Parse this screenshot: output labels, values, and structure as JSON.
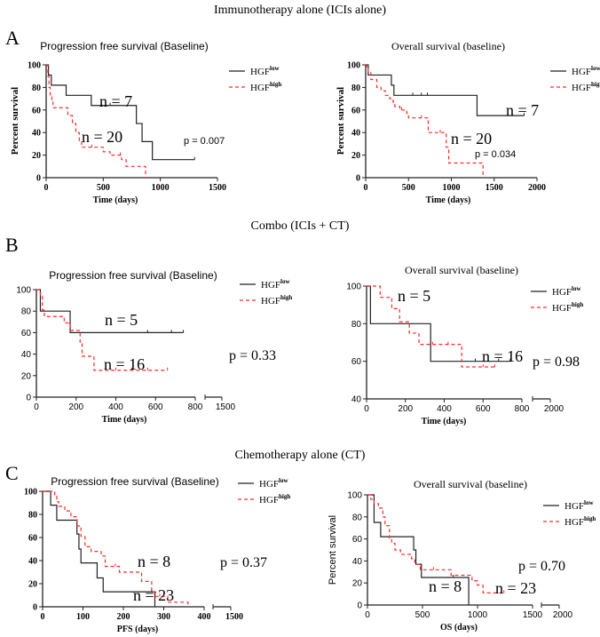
{
  "sections": [
    {
      "letter": "A",
      "title": "Immunotherapy alone (ICIs alone)"
    },
    {
      "letter": "B",
      "title": "Combo (ICIs + CT)"
    },
    {
      "letter": "C",
      "title": "Chemotherapy alone (CT)"
    }
  ],
  "legend": {
    "prefix": "HGF",
    "low_sup": "low",
    "high_sup": "high"
  },
  "colors": {
    "low": "#222222",
    "high": "#ff2a2a"
  },
  "chart_data": [
    {
      "type": "line",
      "subtype": "kaplan-meier",
      "title": "Progression free survival (Baseline)",
      "xlabel": "Time (days)",
      "ylabel": "Percent survival",
      "xlim": [
        0,
        1500
      ],
      "ylim": [
        0,
        100
      ],
      "xticks": [
        0,
        500,
        1000,
        1500
      ],
      "yticks": [
        0,
        20,
        40,
        60,
        80,
        100
      ],
      "break_tick": null,
      "p_value": "p = 0.007",
      "series": [
        {
          "name": "HGF low",
          "n_label": "n = 7",
          "steps": [
            [
              20,
              91
            ],
            [
              45,
              82
            ],
            [
              175,
              73
            ],
            [
              395,
              64
            ],
            [
              790,
              48
            ],
            [
              840,
              32
            ],
            [
              930,
              16
            ]
          ],
          "end": 1300,
          "censored": [
            560,
            1300
          ]
        },
        {
          "name": "HGF high",
          "n_label": "n = 20",
          "steps": [
            [
              15,
              90
            ],
            [
              25,
              80
            ],
            [
              35,
              72
            ],
            [
              50,
              67
            ],
            [
              60,
              62
            ],
            [
              140,
              62
            ],
            [
              190,
              55
            ],
            [
              230,
              48
            ],
            [
              260,
              40
            ],
            [
              290,
              33
            ],
            [
              310,
              27
            ],
            [
              500,
              23
            ],
            [
              560,
              20
            ],
            [
              660,
              16
            ],
            [
              700,
              10
            ],
            [
              870,
              0
            ]
          ],
          "end": 870,
          "censored": [
            400,
            650
          ]
        }
      ]
    },
    {
      "type": "line",
      "subtype": "kaplan-meier",
      "title": "Overall survival (baseline)",
      "xlabel": "Time (days)",
      "ylabel": "Percent survival",
      "xlim": [
        0,
        2000
      ],
      "ylim": [
        0,
        100
      ],
      "xticks": [
        0,
        500,
        1000,
        1500,
        2000
      ],
      "yticks": [
        0,
        20,
        40,
        60,
        80,
        100
      ],
      "break_tick": null,
      "p_value": "p = 0.034",
      "series": [
        {
          "name": "HGF low",
          "n_label": "n = 7",
          "steps": [
            [
              30,
              91
            ],
            [
              300,
              82
            ],
            [
              330,
              73
            ],
            [
              1300,
              55
            ]
          ],
          "end": 1850,
          "censored": [
            550,
            650,
            720,
            1850
          ]
        },
        {
          "name": "HGF high",
          "n_label": "n = 20",
          "steps": [
            [
              10,
              97
            ],
            [
              30,
              93
            ],
            [
              60,
              87
            ],
            [
              130,
              80
            ],
            [
              180,
              77
            ],
            [
              230,
              73
            ],
            [
              280,
              70
            ],
            [
              320,
              67
            ],
            [
              340,
              63
            ],
            [
              400,
              60
            ],
            [
              480,
              57
            ],
            [
              500,
              53
            ],
            [
              730,
              40
            ],
            [
              940,
              27
            ],
            [
              970,
              13
            ],
            [
              1370,
              0
            ]
          ],
          "end": 1370,
          "censored": [
            420,
            650,
            870
          ]
        }
      ]
    },
    {
      "type": "line",
      "subtype": "kaplan-meier",
      "title": "Progression free survival (Baseline)",
      "xlabel": "Time (days)",
      "ylabel": "",
      "xlim": [
        0,
        800
      ],
      "ylim": [
        0,
        100
      ],
      "xticks": [
        0,
        200,
        400,
        600,
        800
      ],
      "yticks": [
        0,
        20,
        40,
        60,
        80,
        100
      ],
      "break_tick": 1500,
      "p_value": "p = 0.33",
      "series": [
        {
          "name": "HGF low",
          "n_label": "n = 5",
          "steps": [
            [
              20,
              80
            ],
            [
              170,
              60
            ]
          ],
          "end": 740,
          "censored": [
            560,
            680,
            740
          ]
        },
        {
          "name": "HGF high",
          "n_label": "n = 16",
          "steps": [
            [
              20,
              94
            ],
            [
              30,
              81
            ],
            [
              40,
              75
            ],
            [
              140,
              69
            ],
            [
              170,
              62
            ],
            [
              220,
              50
            ],
            [
              230,
              38
            ],
            [
              290,
              25
            ]
          ],
          "end": 660,
          "censored": [
            400,
            480,
            560,
            660
          ]
        }
      ]
    },
    {
      "type": "line",
      "subtype": "kaplan-meier",
      "title": "Overall survival (baseline)",
      "xlabel": "Time (days)",
      "ylabel": "",
      "xlim": [
        0,
        800
      ],
      "ylim": [
        40,
        100
      ],
      "xticks": [
        0,
        200,
        400,
        600,
        800
      ],
      "yticks": [
        40,
        60,
        80,
        100
      ],
      "break_tick": 2000,
      "p_value": "p = 0.98",
      "series": [
        {
          "name": "HGF low",
          "n_label": "n = 5",
          "steps": [
            [
              20,
              80
            ],
            [
              330,
              60
            ]
          ],
          "end": 740,
          "censored": [
            560,
            680,
            740
          ]
        },
        {
          "name": "HGF high",
          "n_label": "n = 16",
          "steps": [
            [
              70,
              94
            ],
            [
              130,
              88
            ],
            [
              170,
              81
            ],
            [
              220,
              75
            ],
            [
              270,
              69
            ],
            [
              490,
              57
            ]
          ],
          "end": 660,
          "censored": [
            340,
            420,
            600,
            660
          ]
        }
      ]
    },
    {
      "type": "line",
      "subtype": "kaplan-meier",
      "title": "Progression free survival (Baseline)",
      "xlabel": "PFS (days)",
      "ylabel": "",
      "xlim": [
        0,
        400
      ],
      "ylim": [
        0,
        100
      ],
      "xticks": [
        0,
        100,
        200,
        300,
        400
      ],
      "yticks": [
        0,
        20,
        40,
        60,
        80,
        100
      ],
      "break_tick": 1500,
      "p_value": "p = 0.37",
      "series": [
        {
          "name": "HGF low",
          "n_label": "n = 8",
          "steps": [
            [
              20,
              88
            ],
            [
              35,
              75
            ],
            [
              85,
              63
            ],
            [
              90,
              50
            ],
            [
              95,
              38
            ],
            [
              135,
              25
            ],
            [
              150,
              13
            ],
            [
              278,
              0
            ]
          ],
          "end": 278,
          "censored": [
            270
          ]
        },
        {
          "name": "HGF high",
          "n_label": "n = 23",
          "steps": [
            [
              30,
              96
            ],
            [
              35,
              91
            ],
            [
              40,
              87
            ],
            [
              55,
              83
            ],
            [
              70,
              78
            ],
            [
              85,
              70
            ],
            [
              95,
              61
            ],
            [
              105,
              52
            ],
            [
              120,
              48
            ],
            [
              145,
              44
            ],
            [
              155,
              35
            ],
            [
              190,
              30
            ],
            [
              245,
              22
            ],
            [
              270,
              13
            ],
            [
              280,
              9
            ],
            [
              310,
              4
            ],
            [
              360,
              0
            ]
          ],
          "end": 360,
          "censored": [
            180,
            290
          ]
        }
      ]
    },
    {
      "type": "line",
      "subtype": "kaplan-meier",
      "title": "Overall survival (baseline)",
      "xlabel": "OS (days)",
      "ylabel": "Percent survival",
      "xlim": [
        0,
        1500
      ],
      "ylim": [
        0,
        100
      ],
      "xticks": [
        0,
        500,
        1000,
        1500
      ],
      "yticks": [
        0,
        20,
        40,
        60,
        80,
        100
      ],
      "break_tick": 2000,
      "p_value": "p = 0.70",
      "series": [
        {
          "name": "HGF low",
          "n_label": "n = 8",
          "steps": [
            [
              60,
              75
            ],
            [
              120,
              62
            ],
            [
              420,
              50
            ],
            [
              440,
              37
            ],
            [
              490,
              25
            ],
            [
              920,
              0
            ]
          ],
          "end": 920,
          "censored": [
            780
          ]
        },
        {
          "name": "HGF high",
          "n_label": "n = 23",
          "steps": [
            [
              30,
              96
            ],
            [
              60,
              92
            ],
            [
              100,
              88
            ],
            [
              140,
              80
            ],
            [
              160,
              72
            ],
            [
              200,
              60
            ],
            [
              220,
              56
            ],
            [
              250,
              50
            ],
            [
              300,
              46
            ],
            [
              400,
              42
            ],
            [
              430,
              37
            ],
            [
              480,
              32
            ],
            [
              760,
              27
            ],
            [
              950,
              22
            ],
            [
              1000,
              18
            ],
            [
              1050,
              11
            ]
          ],
          "end": 1240,
          "censored": [
            600,
            1240
          ]
        }
      ]
    }
  ]
}
